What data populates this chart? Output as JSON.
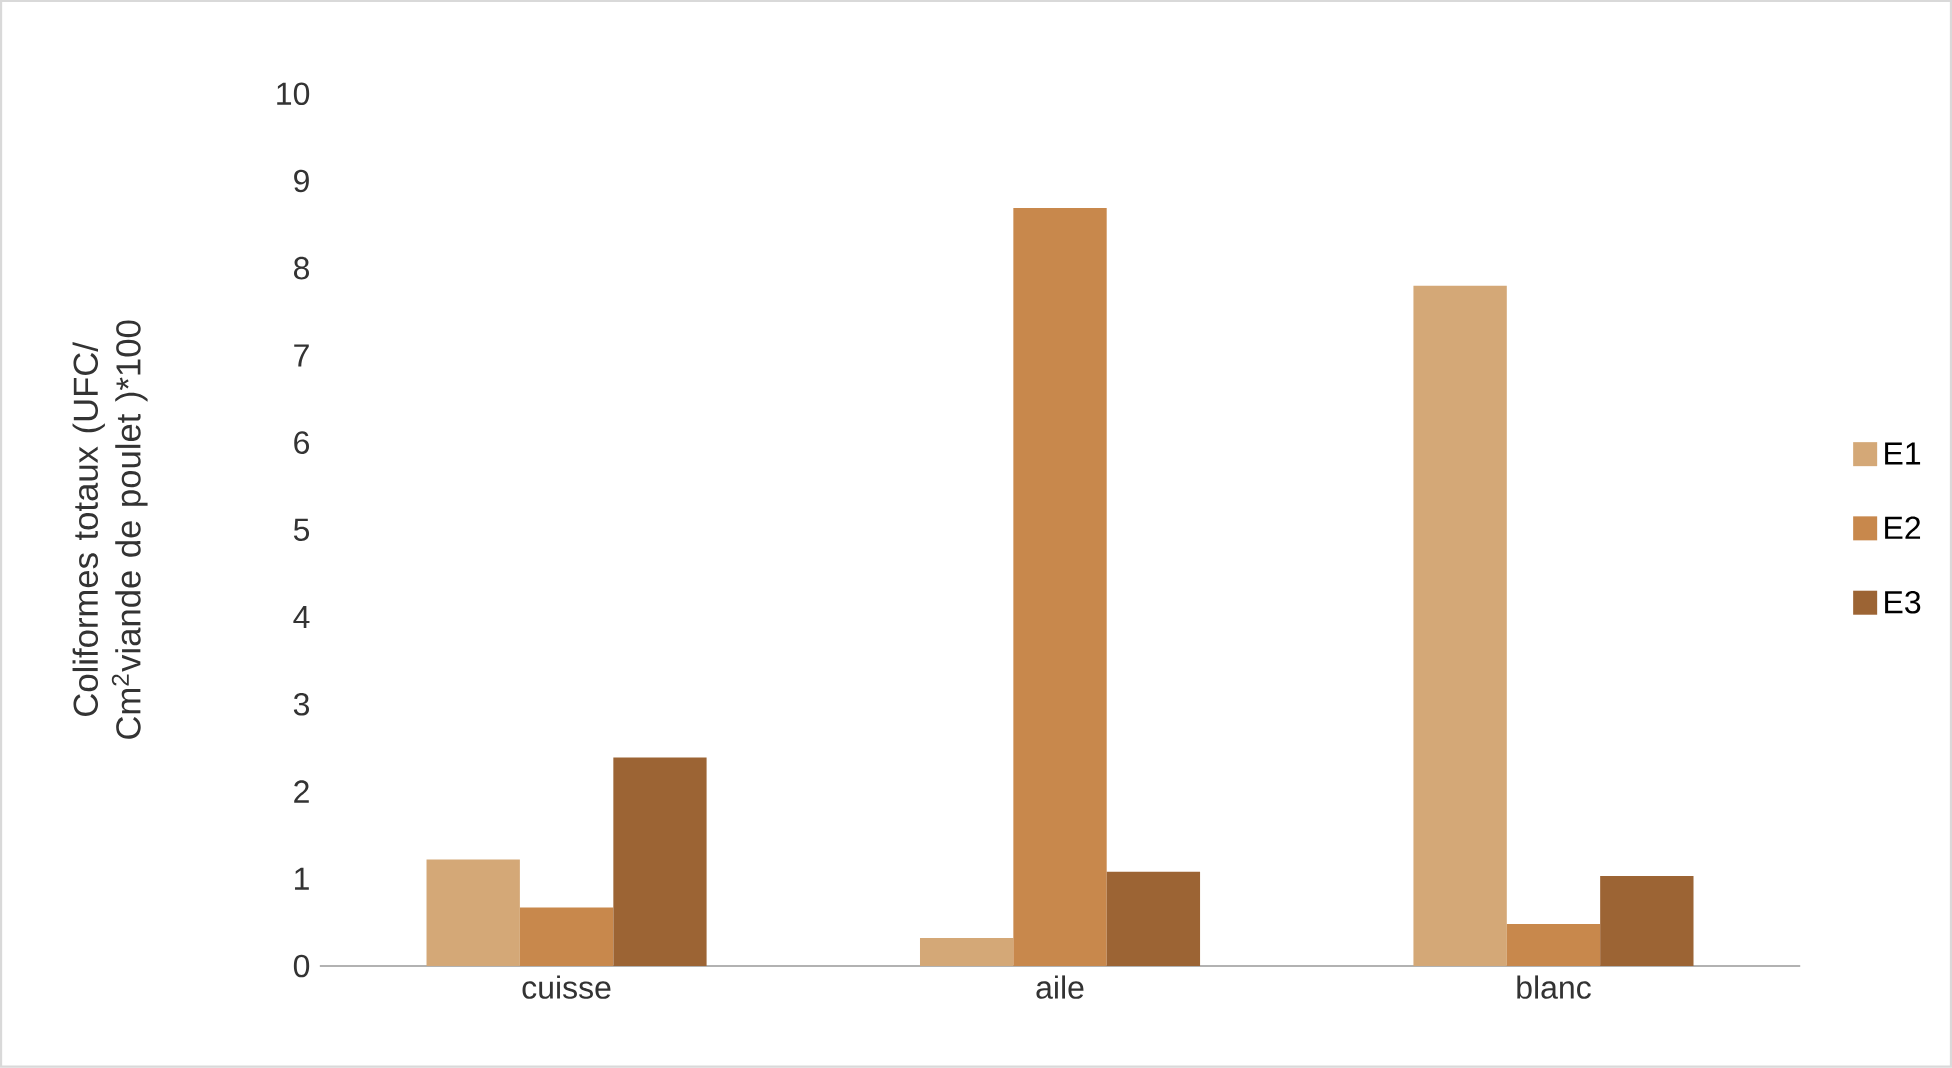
{
  "chart_data": {
    "type": "bar",
    "ylabel": "Coliformes totaux (UFC/ Cm$^{2}$viande de poulet )*100",
    "categories": [
      "cuisse",
      "aile",
      "blanc"
    ],
    "series": [
      {
        "name": "E1",
        "color": "#d4a877",
        "values": [
          1.22,
          0.32,
          7.8
        ]
      },
      {
        "name": "E2",
        "color": "#c8884c",
        "values": [
          0.67,
          8.69,
          0.48
        ]
      },
      {
        "name": "E3",
        "color": "#9c6434",
        "values": [
          2.39,
          1.08,
          1.03
        ]
      }
    ],
    "ylim": [
      0,
      10
    ],
    "yticks": [
      0,
      1,
      2,
      3,
      4,
      5,
      6,
      7,
      8,
      9,
      10
    ],
    "grid": false,
    "legend": "right"
  }
}
